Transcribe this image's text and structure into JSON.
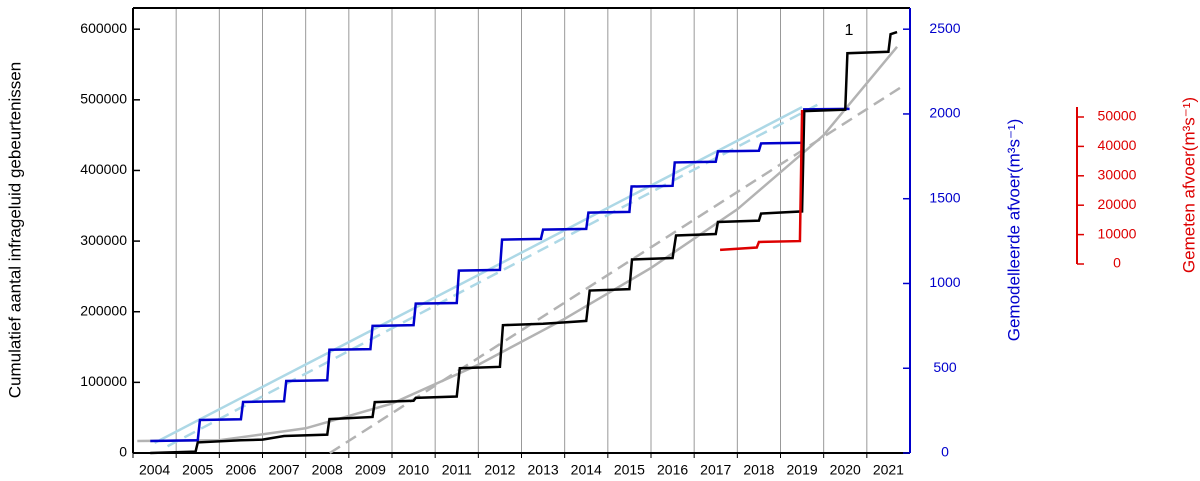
{
  "chart_data": {
    "type": "line",
    "ylabel": "Cumulatief aantal infrageluid gebeurtenissen",
    "y2label": "Gemodelleerde afvoer(m³s⁻¹)",
    "y3label": "Gemeten afvoer(m³s⁻¹)",
    "annotations": [
      "1"
    ],
    "categories": [
      "2004",
      "2005",
      "2006",
      "2007",
      "2008",
      "2009",
      "2010",
      "2011",
      "2012",
      "2013",
      "2014",
      "2015",
      "2016",
      "2017",
      "2018",
      "2019",
      "2020",
      "2021"
    ],
    "xlim": [
      2004,
      2022
    ],
    "ylim": [
      0,
      630000
    ],
    "yticks": [
      0,
      100000,
      200000,
      300000,
      400000,
      500000,
      600000
    ],
    "y2lim": [
      0,
      2625
    ],
    "y2ticks": [
      0,
      500,
      1000,
      1500,
      2000,
      2500
    ],
    "y3lim": [
      0,
      53400
    ],
    "y3ticks": [
      0,
      10000,
      20000,
      30000,
      40000,
      50000
    ],
    "colors": {
      "y": "#000000",
      "y2": "#0000cc",
      "y3": "#dd0000"
    },
    "grid": true,
    "series": [
      {
        "color": "#b3b3b3",
        "linestyle": "solid",
        "axis": "y",
        "x": [
          2004.1,
          2006,
          2008,
          2010,
          2012,
          2014,
          2016,
          2018,
          2020,
          2021.7
        ],
        "values": [
          17000,
          18000,
          35000,
          70000,
          125000,
          190000,
          262000,
          345000,
          450000,
          575000
        ]
      },
      {
        "color": "#b3b3b3",
        "linestyle": "dashed",
        "axis": "y",
        "x": [
          2008.56,
          2021.77
        ],
        "values": [
          0,
          517000
        ]
      },
      {
        "color": "#add8e6",
        "linestyle": "solid",
        "axis": "y2",
        "x": [
          2004.5,
          2019.5
        ],
        "values": [
          60,
          2040
        ]
      },
      {
        "color": "#add8e6",
        "linestyle": "dashed",
        "axis": "y2",
        "x": [
          2004.8,
          2019.9
        ],
        "values": [
          40,
          2060
        ]
      },
      {
        "color": "#0000cc",
        "linestyle": "solid",
        "axis": "y2",
        "x": [
          2004.4,
          2005.5,
          2005.55,
          2006.5,
          2006.55,
          2007.5,
          2007.55,
          2008.5,
          2008.55,
          2009.5,
          2009.55,
          2010.5,
          2010.55,
          2011.5,
          2011.55,
          2012.5,
          2012.55,
          2013.45,
          2013.5,
          2014.5,
          2014.55,
          2015.5,
          2015.55,
          2016.5,
          2016.55,
          2017.5,
          2017.55,
          2018.5,
          2018.55,
          2019.5,
          2019.55,
          2020.6
        ],
        "values": [
          71,
          75,
          195,
          199,
          301,
          305,
          425,
          429,
          609,
          613,
          750,
          754,
          881,
          885,
          1076,
          1080,
          1259,
          1263,
          1318,
          1322,
          1418,
          1422,
          1572,
          1576,
          1714,
          1718,
          1779,
          1783,
          1826,
          1830,
          2027,
          2030
        ]
      },
      {
        "color": "#000000",
        "linestyle": "solid",
        "axis": "y",
        "x": [
          2004.4,
          2005.45,
          2005.5,
          2006.5,
          2007.0,
          2007.5,
          2008.5,
          2008.55,
          2009.55,
          2009.6,
          2010.5,
          2010.55,
          2011.5,
          2011.57,
          2012.5,
          2012.57,
          2013.5,
          2014.0,
          2014.5,
          2014.58,
          2015.5,
          2015.56,
          2016.5,
          2016.58,
          2017.5,
          2017.55,
          2018.5,
          2018.55,
          2019.5,
          2019.55,
          2020.5,
          2020.55,
          2021.5,
          2021.55,
          2021.7
        ],
        "values": [
          0,
          2000,
          15000,
          18000,
          19000,
          24000,
          26000,
          48000,
          51000,
          72000,
          74000,
          78000,
          80000,
          120000,
          122000,
          181000,
          183000,
          185000,
          187000,
          230000,
          232000,
          274000,
          276000,
          308000,
          310000,
          327000,
          329000,
          339000,
          342000,
          484000,
          486000,
          566000,
          568000,
          593000,
          596000
        ]
      },
      {
        "color": "#dd0000",
        "linestyle": "solid",
        "axis": "y3",
        "x": [
          2017.6,
          2018.45,
          2018.5,
          2019.45,
          2019.5
        ],
        "values": [
          4800,
          5600,
          7500,
          7800,
          52400
        ]
      }
    ]
  }
}
